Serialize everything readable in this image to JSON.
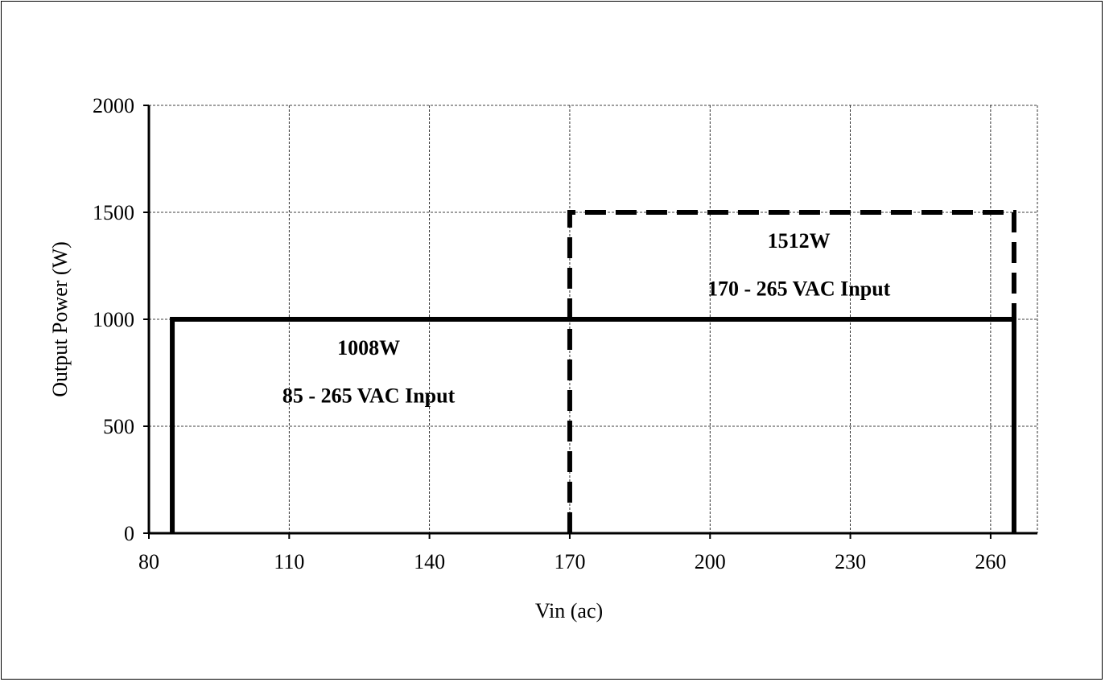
{
  "chart_data": {
    "type": "line",
    "xlabel": "Vin (ac)",
    "ylabel": "Output Power (W)",
    "xlim": [
      80,
      270
    ],
    "ylim": [
      0,
      2000
    ],
    "x_ticks": [
      80,
      110,
      140,
      170,
      200,
      230,
      260
    ],
    "y_ticks": [
      0,
      500,
      1000,
      1500,
      2000
    ],
    "grid": true,
    "series": [
      {
        "style": "solid",
        "color": "#000000",
        "x": [
          85,
          85,
          265,
          265
        ],
        "y": [
          0,
          1000,
          1000,
          0
        ]
      },
      {
        "style": "dashed",
        "color": "#000000",
        "x": [
          170,
          170,
          265,
          265
        ],
        "y": [
          0,
          1500,
          1500,
          1000
        ]
      }
    ],
    "annotations": [
      {
        "text": "1008W",
        "x": 127,
        "y": 835
      },
      {
        "text": "85 - 265 VAC Input",
        "x": 127,
        "y": 610
      },
      {
        "text": "1512W",
        "x": 219,
        "y": 1335
      },
      {
        "text": "170 - 265 VAC Input",
        "x": 219,
        "y": 1110
      }
    ]
  }
}
